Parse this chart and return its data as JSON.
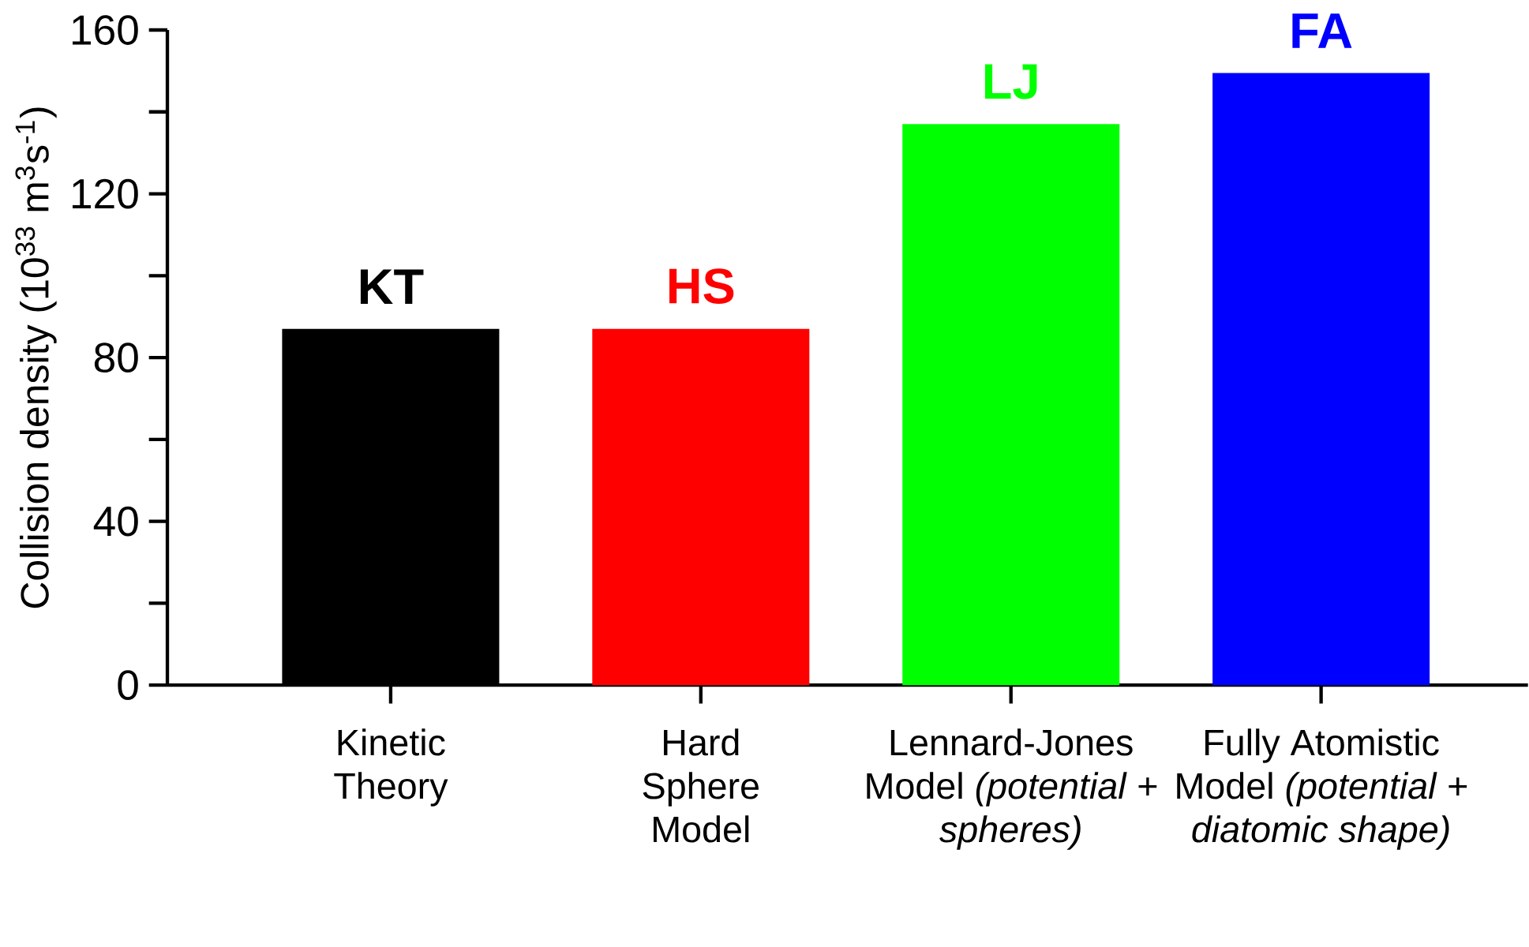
{
  "chart_data": {
    "type": "bar",
    "ylabel": "Collision density (10$^{33}$ m$^{3}$s$^{-1}$)",
    "categories": [
      "Kinetic Theory",
      "Hard Sphere Model",
      "Lennard-Jones Model *(potential + spheres)*",
      "Fully Atomistic Model *(potential + diatomic shape)*"
    ],
    "values": [
      87,
      87,
      137,
      149.5
    ],
    "colors": [
      "#000000",
      "#ff0000",
      "#00ff00",
      "#0000ff"
    ],
    "ylim": [
      0,
      160
    ],
    "yticks": [
      0,
      40,
      80,
      120,
      160
    ],
    "annotations": [
      {
        "text": "KT",
        "x": "Kinetic Theory",
        "y": 87
      },
      {
        "text": "HS",
        "x": "Hard Sphere Model",
        "y": 87
      },
      {
        "text": "LJ",
        "x": "Lennard-Jones Model *(potential + spheres)*",
        "y": 137
      },
      {
        "text": "FA",
        "x": "Fully Atomistic Model *(potential + diatomic shape)*",
        "y": 149.5
      }
    ],
    "grid": false
  }
}
